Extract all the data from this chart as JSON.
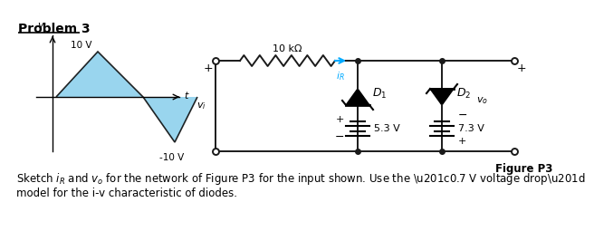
{
  "title": "Problem 3",
  "bottom_text_line1": "Sketch $i_R$ and $v_o$ for the network of Figure P3 for the input shown. Use the “0.7 V voltage drop”",
  "bottom_text_line2": "model for the i-v characteristic of diodes.",
  "fig_label": "Figure P3",
  "v_pos": "10 V",
  "v_neg": "-10 V",
  "resistor_label": "10 kΩ",
  "ir_label": "$i_R$",
  "vi_label": "$v_i$",
  "d1_label": "$D_1$",
  "d2_label": "$D_2$",
  "vo_label": "$v_o$",
  "v1_label": "5.3 V",
  "v2_label": "7.3 V",
  "bg_color": "#ffffff",
  "waveform_fill": "#87ceeb",
  "circuit_color": "#1a1a1a",
  "arrow_color": "#00aaff"
}
